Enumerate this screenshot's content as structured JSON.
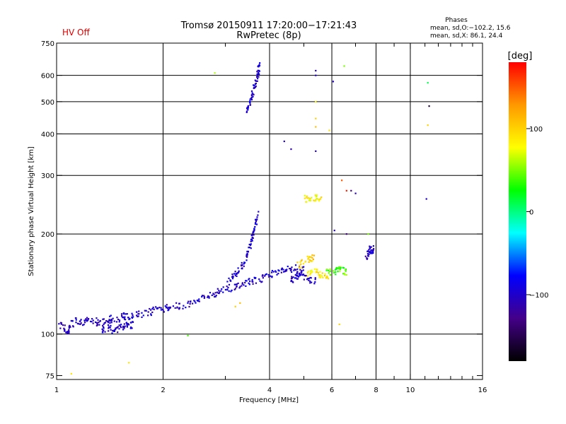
{
  "header": {
    "status": "HV Off",
    "title": "Tromsø 20150911 17:20:00−17:21:43",
    "subtitle": "RwPretec (8p)",
    "stats_title": "Phases",
    "stats_o": "mean, sd,O:−102.2, 15.6",
    "stats_x": "mean, sd,X:  86.1, 24.4"
  },
  "chart_data": {
    "type": "scatter",
    "title": "Tromsø 20150911 17:20:00−17:21:43",
    "subtitle": "RwPretec (8p)",
    "xlabel": "Frequency [MHz]",
    "ylabel": "Stationary phase Virtual Height [km]",
    "x_scale": "log",
    "y_scale": "log",
    "xlim": [
      1,
      16
    ],
    "ylim": [
      73,
      750
    ],
    "x_ticks": [
      1,
      2,
      4,
      6,
      8,
      10,
      16
    ],
    "x_tick_labels": [
      "1",
      "2",
      "4",
      "6",
      "8",
      "10",
      "16"
    ],
    "x_minor_ticks": [
      3,
      5,
      7,
      9,
      11,
      12,
      13,
      14,
      15
    ],
    "y_ticks": [
      75,
      100,
      200,
      300,
      400,
      500,
      600,
      750
    ],
    "y_tick_labels": [
      "75",
      "100",
      "200",
      "300",
      "400",
      "500",
      "600",
      "750"
    ],
    "grid": true,
    "grid_x": [
      2,
      4,
      6,
      8,
      10
    ],
    "grid_y": [
      100,
      200,
      300,
      400,
      500,
      600
    ],
    "colorbar": {
      "label": "[deg]",
      "ticks": [
        100,
        0,
        -100
      ],
      "tick_labels": [
        "100",
        "0",
        "−100"
      ],
      "range": [
        -180,
        180
      ],
      "colors": [
        "#ff0000",
        "#ff9900",
        "#ffff00",
        "#00ff00",
        "#00ffff",
        "#0000ff",
        "#440088",
        "#000000"
      ]
    },
    "trace_series": [
      {
        "phase": -100,
        "points": [
          [
            1.02,
            106
          ],
          [
            1.05,
            104
          ],
          [
            1.08,
            101
          ],
          [
            1.1,
            107
          ],
          [
            1.14,
            110
          ],
          [
            1.18,
            109
          ],
          [
            1.22,
            110
          ],
          [
            1.28,
            110
          ],
          [
            1.32,
            108
          ],
          [
            1.38,
            109
          ],
          [
            1.42,
            111
          ],
          [
            1.48,
            111
          ],
          [
            1.55,
            113
          ],
          [
            1.6,
            113
          ],
          [
            1.68,
            114
          ],
          [
            1.75,
            115
          ],
          [
            1.85,
            117
          ],
          [
            1.95,
            119
          ],
          [
            2.05,
            120
          ],
          [
            2.15,
            121
          ],
          [
            2.25,
            122
          ],
          [
            2.4,
            124
          ],
          [
            2.55,
            128
          ],
          [
            2.7,
            131
          ],
          [
            2.85,
            134
          ],
          [
            3.0,
            137
          ],
          [
            3.15,
            138
          ],
          [
            3.3,
            140
          ],
          [
            3.45,
            142
          ],
          [
            3.6,
            145
          ],
          [
            3.8,
            147
          ],
          [
            4.0,
            151
          ],
          [
            4.2,
            154
          ],
          [
            4.4,
            155
          ],
          [
            4.6,
            157
          ],
          [
            4.8,
            158
          ],
          [
            5.0,
            156
          ]
        ]
      },
      {
        "phase": -100,
        "points": [
          [
            1.35,
            103
          ],
          [
            1.4,
            104
          ],
          [
            1.45,
            103
          ],
          [
            1.5,
            104
          ],
          [
            1.55,
            105
          ],
          [
            1.6,
            106
          ],
          [
            1.65,
            107
          ]
        ]
      },
      {
        "phase": -100,
        "points": [
          [
            3.05,
            145
          ],
          [
            3.15,
            150
          ],
          [
            3.25,
            155
          ],
          [
            3.35,
            160
          ],
          [
            3.45,
            170
          ],
          [
            3.5,
            180
          ],
          [
            3.55,
            190
          ],
          [
            3.6,
            200
          ],
          [
            3.65,
            215
          ],
          [
            3.7,
            230
          ]
        ]
      },
      {
        "phase": -100,
        "points": [
          [
            3.45,
            470
          ],
          [
            3.5,
            490
          ],
          [
            3.55,
            510
          ],
          [
            3.6,
            540
          ],
          [
            3.65,
            570
          ],
          [
            3.7,
            600
          ],
          [
            3.72,
            630
          ],
          [
            3.75,
            650
          ]
        ]
      },
      {
        "phase": -100,
        "points": [
          [
            4.6,
            145
          ],
          [
            4.7,
            148
          ],
          [
            4.8,
            150
          ],
          [
            5.0,
            148
          ],
          [
            5.2,
            145
          ],
          [
            5.4,
            145
          ]
        ]
      },
      {
        "phase": -100,
        "points": [
          [
            7.5,
            170
          ],
          [
            7.6,
            175
          ],
          [
            7.7,
            180
          ],
          [
            7.8,
            176
          ],
          [
            7.9,
            182
          ]
        ]
      },
      {
        "phase": 100,
        "points": [
          [
            4.8,
            160
          ],
          [
            5.0,
            165
          ],
          [
            5.2,
            170
          ],
          [
            5.4,
            168
          ]
        ]
      },
      {
        "phase": 90,
        "points": [
          [
            5.1,
            150
          ],
          [
            5.3,
            155
          ],
          [
            5.5,
            152
          ],
          [
            5.7,
            150
          ],
          [
            5.9,
            147
          ]
        ]
      },
      {
        "phase": 40,
        "points": [
          [
            5.8,
            160
          ],
          [
            6.0,
            150
          ],
          [
            6.2,
            155
          ],
          [
            6.4,
            158
          ],
          [
            6.6,
            152
          ]
        ]
      },
      {
        "phase": 80,
        "points": [
          [
            5.0,
            255
          ],
          [
            5.2,
            255
          ],
          [
            5.4,
            257
          ],
          [
            5.6,
            258
          ]
        ]
      }
    ],
    "scattered_points": [
      [
        1.1,
        76,
        90
      ],
      [
        1.6,
        82,
        90
      ],
      [
        2.35,
        99,
        40
      ],
      [
        2.8,
        610,
        60
      ],
      [
        4.4,
        380,
        -100
      ],
      [
        4.6,
        360,
        -110
      ],
      [
        5.4,
        620,
        -100
      ],
      [
        5.4,
        600,
        -100
      ],
      [
        5.4,
        500,
        80
      ],
      [
        5.4,
        445,
        100
      ],
      [
        5.4,
        420,
        110
      ],
      [
        5.4,
        355,
        -100
      ],
      [
        5.6,
        258,
        100
      ],
      [
        5.9,
        410,
        90
      ],
      [
        6.05,
        575,
        -100
      ],
      [
        6.3,
        107,
        100
      ],
      [
        6.5,
        640,
        50
      ],
      [
        6.4,
        290,
        150
      ],
      [
        6.6,
        270,
        170
      ],
      [
        6.8,
        270,
        -130
      ],
      [
        7.0,
        265,
        -110
      ],
      [
        6.1,
        205,
        -100
      ],
      [
        6.6,
        200,
        -130
      ],
      [
        7.6,
        200,
        50
      ],
      [
        11.2,
        570,
        10
      ],
      [
        11.3,
        485,
        -160
      ],
      [
        11.2,
        425,
        100
      ],
      [
        11.1,
        255,
        -100
      ],
      [
        3.2,
        121,
        100
      ],
      [
        3.3,
        124,
        110
      ]
    ]
  }
}
